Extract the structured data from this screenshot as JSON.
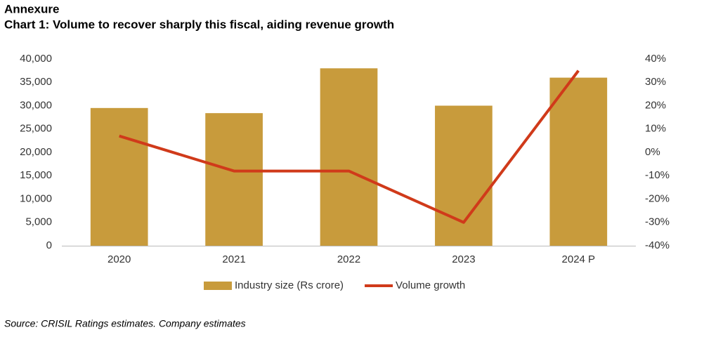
{
  "heading": "Annexure",
  "chart_data": {
    "type": "bar",
    "title": "Chart 1: Volume to recover sharply this fiscal, aiding revenue growth",
    "categories": [
      "2020",
      "2021",
      "2022",
      "2023",
      "2024 P"
    ],
    "series": [
      {
        "name": "Industry size (Rs crore)",
        "type": "bar",
        "color": "#c89b3c",
        "values": [
          29500,
          28400,
          38000,
          30000,
          36000
        ]
      },
      {
        "name": "Volume growth",
        "type": "line",
        "axis": "y2",
        "color": "#d03a1a",
        "values": [
          7,
          -8,
          -8,
          -30,
          35
        ]
      }
    ],
    "ylim": [
      0,
      40000
    ],
    "yticks": [
      0,
      {
        "value": 5000,
        "label": "5,000"
      },
      {
        "value": 10000,
        "label": "10,000"
      },
      {
        "value": 15000,
        "label": "15,000"
      },
      {
        "value": 20000,
        "label": "20,000"
      },
      {
        "value": 25000,
        "label": "25,000"
      },
      {
        "value": 30000,
        "label": "30,000"
      },
      {
        "value": 35000,
        "label": "35,000"
      },
      {
        "value": 40000,
        "label": "40,000"
      }
    ],
    "y2lim": [
      -40,
      40
    ],
    "y2ticks": [
      {
        "value": -40,
        "label": "-40%"
      },
      {
        "value": -30,
        "label": "-30%"
      },
      {
        "value": -20,
        "label": "-20%"
      },
      {
        "value": -10,
        "label": "-10%"
      },
      {
        "value": 0,
        "label": "0%"
      },
      {
        "value": 10,
        "label": "10%"
      },
      {
        "value": 20,
        "label": "20%"
      },
      {
        "value": 30,
        "label": "30%"
      },
      {
        "value": 40,
        "label": "40%"
      }
    ],
    "grid": false,
    "legend": "bottom",
    "source": "Source: CRISIL Ratings estimates. Company estimates"
  }
}
